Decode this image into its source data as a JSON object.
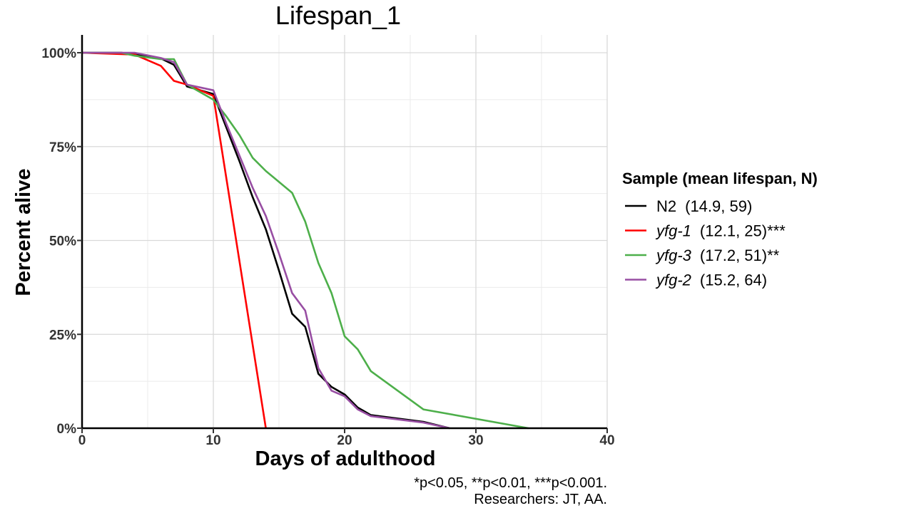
{
  "chart_data": {
    "type": "line",
    "title": "Lifespan_1",
    "xlabel": "Days of adulthood",
    "ylabel": "Percent alive",
    "xlim": [
      0,
      40
    ],
    "ylim": [
      0,
      100
    ],
    "x_ticks": [
      "0",
      "10",
      "20",
      "30",
      "40"
    ],
    "x_tick_values": [
      0,
      10,
      20,
      30,
      40
    ],
    "y_ticks": [
      "0%",
      "25%",
      "50%",
      "75%",
      "100%"
    ],
    "y_tick_values": [
      0,
      25,
      50,
      75,
      100
    ],
    "grid": true,
    "legend_position": "right",
    "legend_title": "Sample (mean lifespan, N)",
    "caption": [
      "*p<0.05, **p<0.01, ***p<0.001.",
      "Researchers: JT, AA."
    ],
    "series": [
      {
        "name": "N2",
        "italic": false,
        "stats": "(14.9,  59)",
        "color": "#000000",
        "x": [
          0,
          3,
          4,
          6,
          7,
          8,
          10,
          11,
          12,
          13,
          14,
          15,
          16,
          17,
          18,
          19,
          20,
          21,
          22,
          26,
          28
        ],
        "y": [
          100,
          100,
          99.6,
          98.5,
          96.8,
          91,
          89,
          80,
          71,
          61.5,
          53,
          42,
          30.5,
          27,
          14.5,
          11,
          9,
          5.5,
          3.5,
          1.7,
          0
        ]
      },
      {
        "name": "yfg-1",
        "italic": true,
        "stats": "(12.1,  25)***",
        "color": "#ff0000",
        "x": [
          0,
          4,
          6,
          7,
          8,
          10,
          14
        ],
        "y": [
          100,
          99.5,
          96.5,
          92.5,
          91.5,
          88.5,
          0
        ]
      },
      {
        "name": "yfg-3",
        "italic": true,
        "stats": "(17.2,  51)**",
        "color": "#4daf4a",
        "x": [
          0,
          3,
          4,
          6,
          7,
          8,
          10,
          11,
          12,
          13,
          14,
          16,
          17,
          18,
          19,
          20,
          21,
          22,
          26,
          34
        ],
        "y": [
          100,
          100,
          99.2,
          98.3,
          98.3,
          91.5,
          87.5,
          83,
          78,
          72,
          68.5,
          62.7,
          55,
          44,
          36,
          24.5,
          21,
          15.2,
          5,
          0
        ]
      },
      {
        "name": "yfg-2",
        "italic": true,
        "stats": "(15.2,  64)",
        "color": "#984ea3",
        "x": [
          0,
          4,
          6,
          7,
          8,
          10,
          11,
          12,
          13,
          14,
          15,
          16,
          17,
          18,
          19,
          20,
          21,
          22,
          26,
          28
        ],
        "y": [
          100,
          100,
          98.6,
          97.5,
          91.5,
          90,
          81,
          72.5,
          64,
          56.5,
          46.5,
          36,
          31.3,
          16,
          10,
          8.5,
          5,
          3.2,
          1.5,
          0
        ]
      }
    ]
  }
}
